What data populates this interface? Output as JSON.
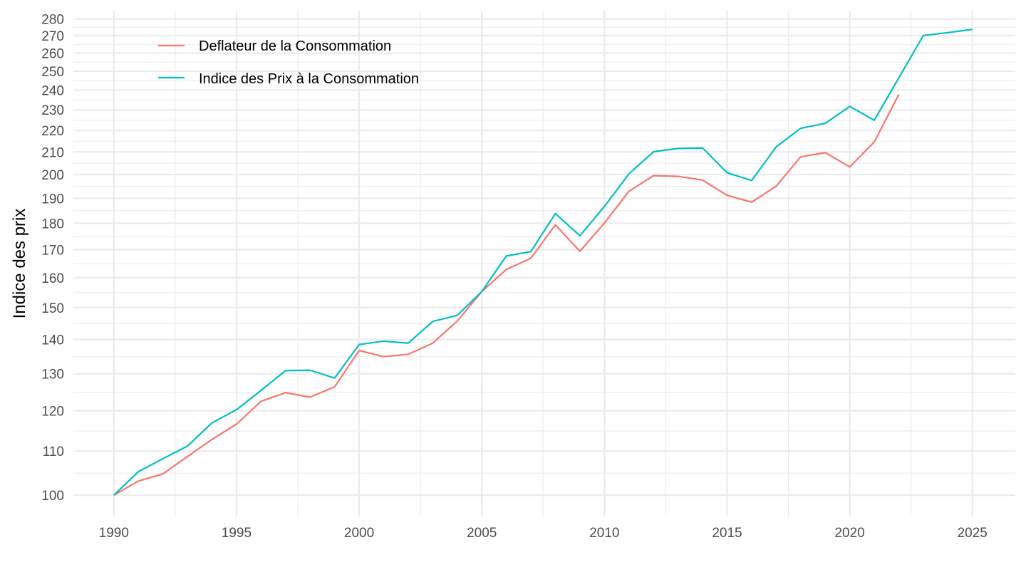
{
  "chart_data": {
    "type": "line",
    "title": "",
    "xlabel": "",
    "ylabel": "Indice des prix",
    "yscale": "log",
    "xlim": [
      1988.35,
      2026.75
    ],
    "ylim": [
      95.5,
      285
    ],
    "grid": true,
    "legend_position": "top-left",
    "x_ticks": [
      1990,
      1995,
      2000,
      2005,
      2010,
      2015,
      2020,
      2025
    ],
    "x_tick_labels": [
      "1990",
      "1995",
      "2000",
      "2005",
      "2010",
      "2015",
      "2020",
      "2025"
    ],
    "y_ticks": [
      100,
      110,
      120,
      130,
      140,
      150,
      160,
      170,
      180,
      190,
      200,
      210,
      220,
      230,
      240,
      250,
      260,
      270,
      280
    ],
    "y_tick_labels": [
      "100",
      "110",
      "120",
      "130",
      "140",
      "150",
      "160",
      "170",
      "180",
      "190",
      "200",
      "210",
      "220",
      "230",
      "240",
      "250",
      "260",
      "270",
      "280"
    ],
    "series": [
      {
        "name": "Deflateur de la Consommation",
        "color": "#F8766D",
        "x": [
          1990,
          1991,
          1992,
          1993,
          1994,
          1995,
          1996,
          1997,
          1998,
          1999,
          2000,
          2001,
          2002,
          2003,
          2004,
          2005,
          2006,
          2007,
          2008,
          2009,
          2010,
          2011,
          2012,
          2013,
          2014,
          2015,
          2016,
          2017,
          2018,
          2019,
          2020,
          2021,
          2022
        ],
        "values": [
          100.0,
          103.1,
          104.7,
          108.7,
          112.8,
          116.6,
          122.5,
          124.8,
          123.6,
          126.4,
          136.7,
          134.9,
          135.6,
          138.9,
          145.7,
          155.3,
          162.9,
          166.9,
          179.4,
          169.4,
          180.1,
          192.9,
          199.5,
          199.2,
          197.6,
          191.2,
          188.4,
          195.0,
          207.8,
          209.7,
          203.3,
          214.6,
          237.8
        ]
      },
      {
        "name": "Indice des Prix à la Consommation",
        "color": "#00BFC4",
        "x": [
          1990,
          1991,
          1992,
          1993,
          1994,
          1995,
          1996,
          1997,
          1998,
          1999,
          2000,
          2001,
          2002,
          2003,
          2004,
          2005,
          2006,
          2007,
          2008,
          2009,
          2010,
          2011,
          2012,
          2013,
          2014,
          2015,
          2016,
          2017,
          2018,
          2019,
          2020,
          2021,
          2022,
          2023,
          2024,
          2025
        ],
        "values": [
          100.0,
          105.2,
          108.2,
          111.2,
          116.9,
          120.3,
          125.4,
          130.9,
          131.0,
          128.8,
          138.5,
          139.5,
          138.9,
          145.6,
          147.5,
          155.3,
          167.7,
          169.3,
          183.8,
          175.2,
          186.7,
          200.3,
          210.1,
          211.6,
          211.8,
          200.8,
          197.4,
          212.3,
          221.0,
          223.4,
          231.7,
          224.9,
          246.5,
          270.1,
          271.8,
          273.7
        ]
      }
    ]
  }
}
